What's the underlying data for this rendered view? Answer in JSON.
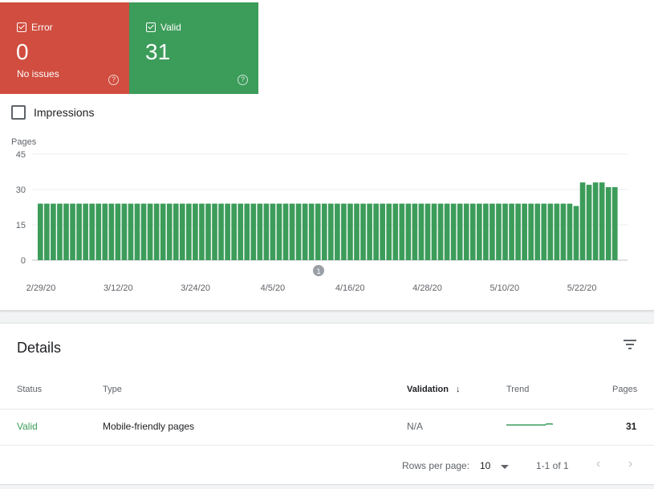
{
  "summary": {
    "error": {
      "label": "Error",
      "value": "0",
      "subtitle": "No issues",
      "color": "#d04d3f"
    },
    "valid": {
      "label": "Valid",
      "value": "31",
      "subtitle": "",
      "color": "#3c9c5a"
    },
    "help_glyph": "?"
  },
  "impressions": {
    "label": "Impressions",
    "checked": false
  },
  "chart_data": {
    "type": "bar",
    "ylabel": "Pages",
    "ylim": [
      0,
      45
    ],
    "yticks": [
      0,
      15,
      30,
      45
    ],
    "x_tick_labels": [
      "2/29/20",
      "3/12/20",
      "3/24/20",
      "4/5/20",
      "4/16/20",
      "4/28/20",
      "5/10/20",
      "5/22/20"
    ],
    "annotation": "1",
    "color": "#3c9c5a",
    "values": [
      24,
      24,
      24,
      24,
      24,
      24,
      24,
      24,
      24,
      24,
      24,
      24,
      24,
      24,
      24,
      24,
      24,
      24,
      24,
      24,
      24,
      24,
      24,
      24,
      24,
      24,
      24,
      24,
      24,
      24,
      24,
      24,
      24,
      24,
      24,
      24,
      24,
      24,
      24,
      24,
      24,
      24,
      24,
      24,
      24,
      24,
      24,
      24,
      24,
      24,
      24,
      24,
      24,
      24,
      24,
      24,
      24,
      24,
      24,
      24,
      24,
      24,
      24,
      24,
      24,
      24,
      24,
      24,
      24,
      24,
      24,
      24,
      24,
      24,
      24,
      24,
      24,
      24,
      24,
      24,
      24,
      24,
      24,
      23,
      33,
      32,
      33,
      33,
      31,
      31
    ]
  },
  "details": {
    "title": "Details",
    "columns": {
      "status": "Status",
      "type": "Type",
      "validation": "Validation",
      "trend": "Trend",
      "pages": "Pages"
    },
    "sort_arrow": "↓",
    "rows": [
      {
        "status": "Valid",
        "type": "Mobile-friendly pages",
        "validation": "N/A",
        "pages": "31",
        "trend": [
          24,
          24,
          24,
          24,
          24,
          24,
          24,
          24,
          24,
          24,
          24,
          24,
          24,
          24,
          24,
          24,
          24,
          24,
          24,
          23,
          33,
          32,
          33,
          31
        ]
      }
    ],
    "pagination": {
      "rows_label": "Rows per page:",
      "rows_value": "10",
      "range": "1-1 of 1",
      "prev": "‹",
      "next": "›"
    }
  }
}
